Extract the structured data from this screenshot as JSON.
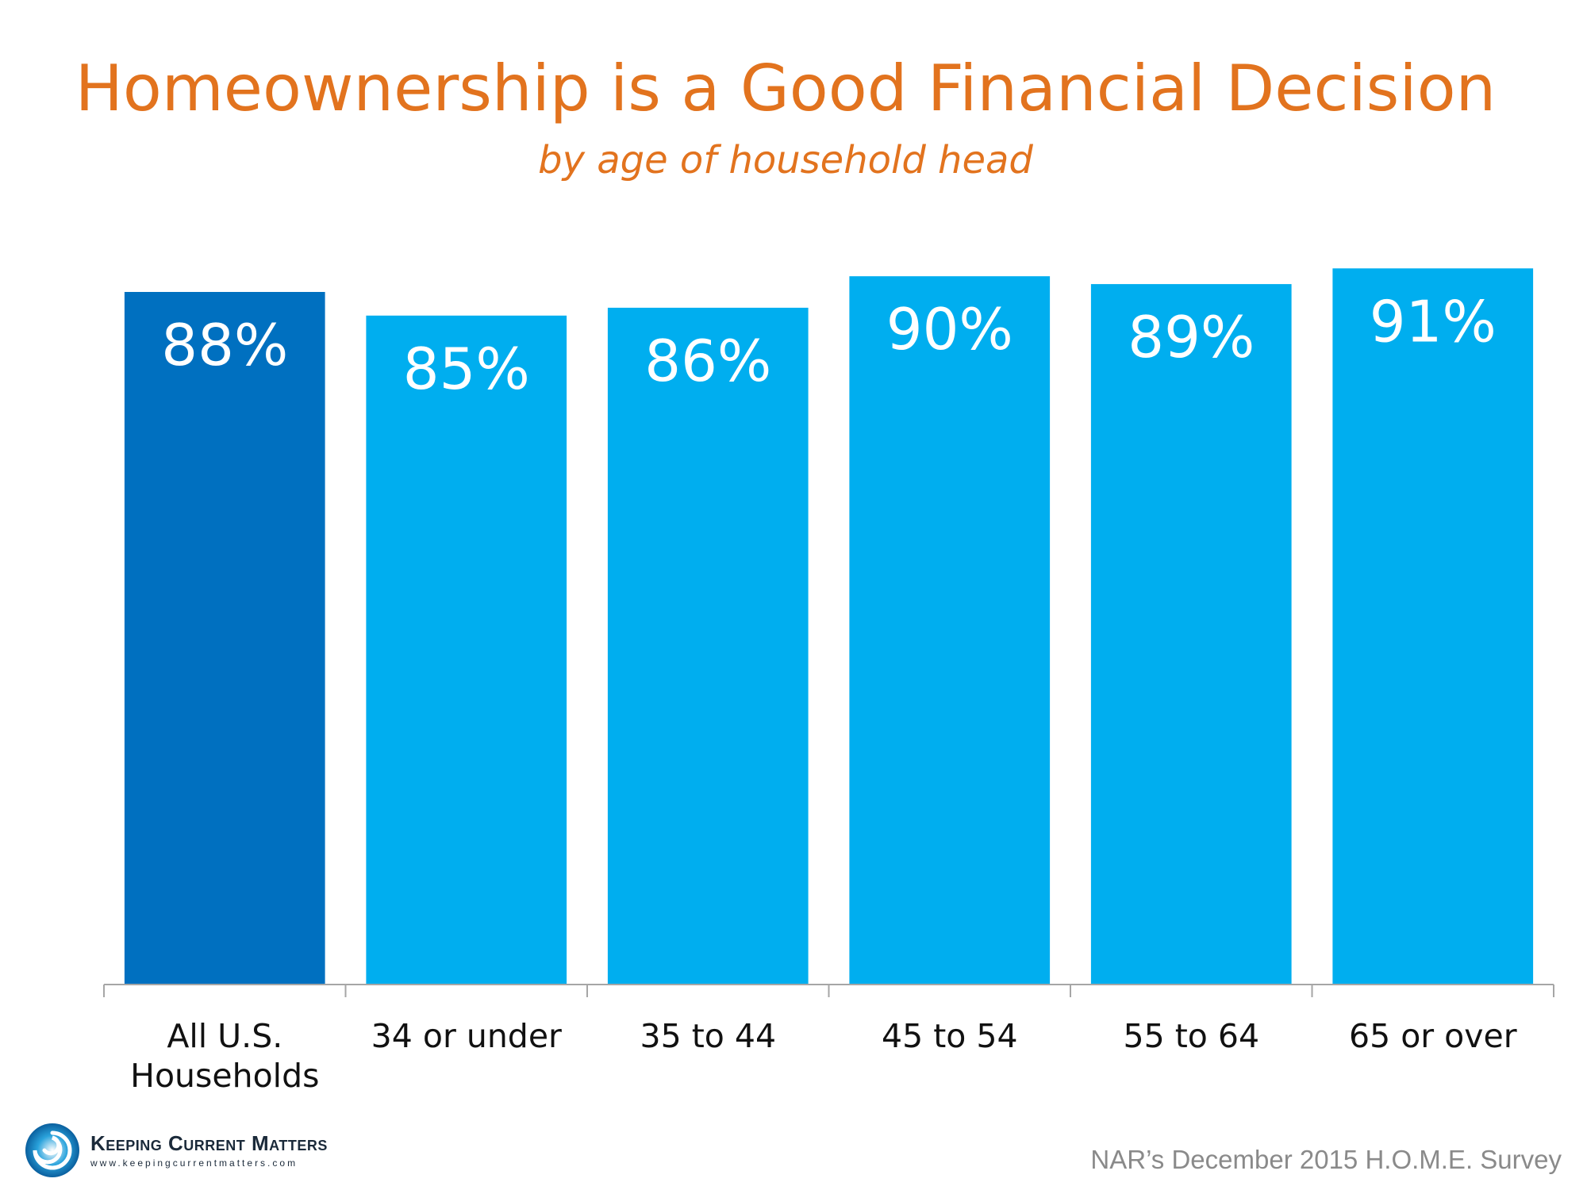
{
  "chart_data": {
    "type": "bar",
    "title": "Homeownership is a Good Financial Decision",
    "subtitle": "by age of household head",
    "categories": [
      [
        "All U.S.",
        "Households"
      ],
      [
        "34 or under"
      ],
      [
        "35 to 44"
      ],
      [
        "45 to 54"
      ],
      [
        "55 to 64"
      ],
      [
        "65 or over"
      ]
    ],
    "values": [
      88,
      85,
      86,
      90,
      89,
      91
    ],
    "value_labels": [
      "88%",
      "85%",
      "86%",
      "90%",
      "89%",
      "91%"
    ],
    "ylim": [
      0,
      100
    ],
    "grid": false,
    "legend": "none",
    "colors": {
      "highlight": "#0070c0",
      "default": "#00aeef",
      "title": "#e2731e",
      "axis": "#a6a6a6"
    }
  },
  "branding": {
    "logo_name": "Keeping Current Matters",
    "logo_url": "www.keepingcurrentmatters.com",
    "logo_icon": "swirl-logo-icon"
  },
  "source": "NAR’s December 2015 H.O.M.E. Survey"
}
